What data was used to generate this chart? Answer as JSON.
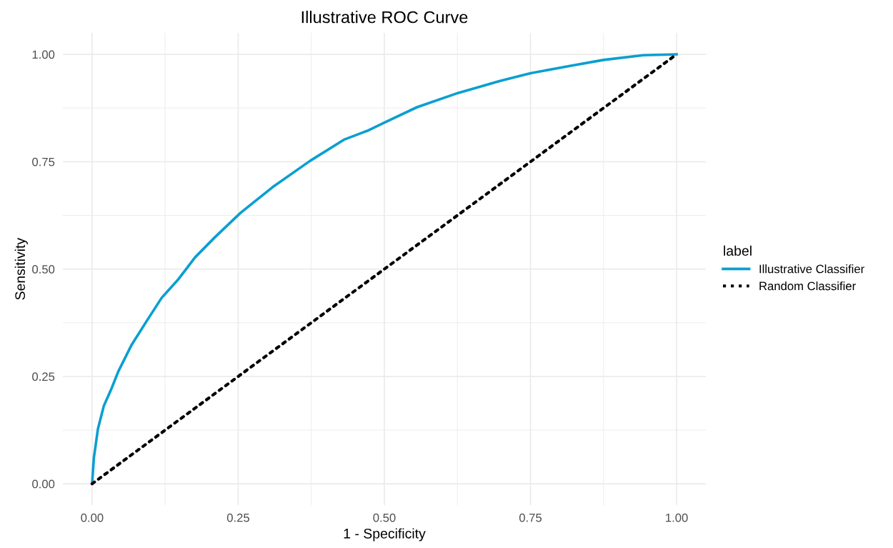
{
  "chart_data": {
    "type": "line",
    "title": "Illustrative ROC Curve",
    "xlabel": "1 - Specificity",
    "ylabel": "Sensitivity",
    "legend_title": "label",
    "xlim": [
      -0.05,
      1.05
    ],
    "ylim": [
      -0.05,
      1.05
    ],
    "xticks": [
      {
        "value": 0,
        "label": "0.00"
      },
      {
        "value": 0.125,
        "label": null
      },
      {
        "value": 0.25,
        "label": "0.25"
      },
      {
        "value": 0.375,
        "label": null
      },
      {
        "value": 0.5,
        "label": "0.50"
      },
      {
        "value": 0.625,
        "label": null
      },
      {
        "value": 0.75,
        "label": "0.75"
      },
      {
        "value": 0.875,
        "label": null
      },
      {
        "value": 1,
        "label": "1.00"
      }
    ],
    "yticks": [
      {
        "value": 0,
        "label": "0.00"
      },
      {
        "value": 0.125,
        "label": null
      },
      {
        "value": 0.25,
        "label": "0.25"
      },
      {
        "value": 0.375,
        "label": null
      },
      {
        "value": 0.5,
        "label": "0.50"
      },
      {
        "value": 0.625,
        "label": null
      },
      {
        "value": 0.75,
        "label": "0.75"
      },
      {
        "value": 0.875,
        "label": null
      },
      {
        "value": 1,
        "label": "1.00"
      }
    ],
    "grid": true,
    "legend": "right",
    "series": [
      {
        "name": "Illustrative Classifier",
        "color": "#0a9fd0",
        "line_style": "solid",
        "x": [
          0,
          0.003,
          0.01,
          0.02,
          0.033,
          0.045,
          0.067,
          0.092,
          0.119,
          0.148,
          0.176,
          0.21,
          0.254,
          0.309,
          0.373,
          0.432,
          0.471,
          0.5,
          0.556,
          0.626,
          0.698,
          0.75,
          0.821,
          0.875,
          0.943,
          1
        ],
        "values": [
          0,
          0.06,
          0.128,
          0.181,
          0.221,
          0.262,
          0.322,
          0.376,
          0.433,
          0.477,
          0.527,
          0.574,
          0.631,
          0.691,
          0.752,
          0.802,
          0.822,
          0.841,
          0.877,
          0.91,
          0.938,
          0.956,
          0.974,
          0.987,
          0.998,
          1
        ]
      },
      {
        "name": "Random Classifier",
        "color": "#000000",
        "line_style": "dotted",
        "x": [
          0,
          1
        ],
        "values": [
          0,
          1
        ]
      }
    ]
  }
}
